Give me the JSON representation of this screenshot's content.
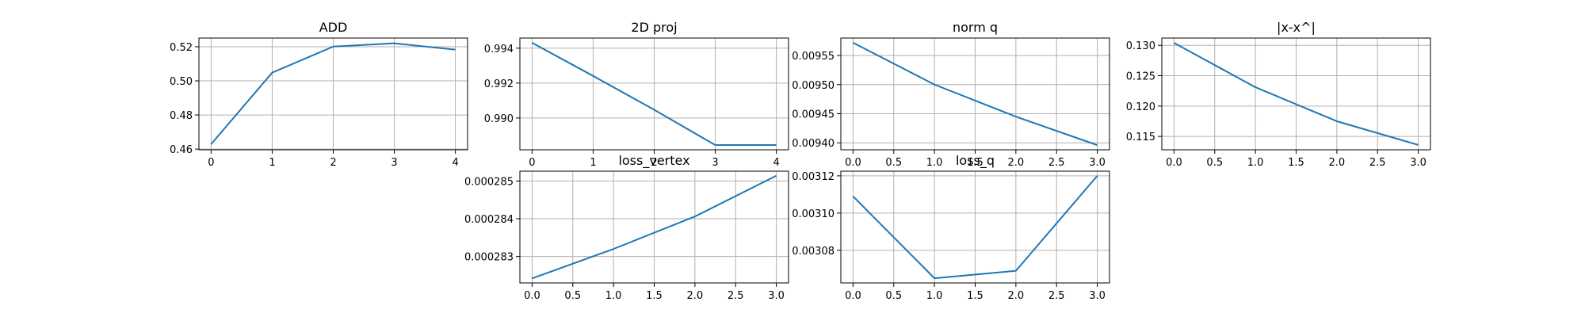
{
  "chart_data": [
    {
      "type": "line",
      "title": "ADD",
      "x": [
        0,
        1,
        2,
        3,
        4
      ],
      "series": [
        {
          "values": [
            0.4629,
            0.5048,
            0.5201,
            0.522,
            0.5183
          ]
        }
      ],
      "xlim": [
        -0.2,
        4.2
      ],
      "ylim": [
        0.4596,
        0.5251
      ],
      "xticks": [
        0,
        1,
        2,
        3,
        4
      ],
      "xtick_labels": [
        "0",
        "1",
        "2",
        "3",
        "4"
      ],
      "yticks": [
        0.46,
        0.48,
        0.5,
        0.52
      ],
      "ytick_labels": [
        "0.46",
        "0.48",
        "0.50",
        "0.52"
      ],
      "grid": true,
      "color": "#1f77b4"
    },
    {
      "type": "line",
      "title": "2D proj",
      "x": [
        0,
        1,
        2,
        3,
        4
      ],
      "series": [
        {
          "values": [
            0.99431,
            0.99241,
            0.99047,
            0.98845,
            0.98845
          ]
        }
      ],
      "xlim": [
        -0.2,
        4.2
      ],
      "ylim": [
        0.98818,
        0.99458
      ],
      "xticks": [
        0,
        1,
        2,
        3,
        4
      ],
      "xtick_labels": [
        "0",
        "1",
        "2",
        "3",
        "4"
      ],
      "yticks": [
        0.99,
        0.992,
        0.994
      ],
      "ytick_labels": [
        "0.990",
        "0.992",
        "0.994"
      ],
      "grid": true,
      "color": "#1f77b4"
    },
    {
      "type": "line",
      "title": "norm q",
      "x": [
        0,
        1,
        2,
        3
      ],
      "series": [
        {
          "values": [
            0.009572,
            0.0095,
            0.009445,
            0.009396
          ]
        }
      ],
      "xlim": [
        -0.15,
        3.15
      ],
      "ylim": [
        0.009388,
        0.00958
      ],
      "xticks": [
        0.0,
        0.5,
        1.0,
        1.5,
        2.0,
        2.5,
        3.0
      ],
      "xtick_labels": [
        "0.0",
        "0.5",
        "1.0",
        "1.5",
        "2.0",
        "2.5",
        "3.0"
      ],
      "yticks": [
        0.0094,
        0.00945,
        0.0095,
        0.00955
      ],
      "ytick_labels": [
        "0.00940",
        "0.00945",
        "0.00950",
        "0.00955"
      ],
      "grid": true,
      "color": "#1f77b4"
    },
    {
      "type": "line",
      "title": "|x-x^|",
      "x": [
        0,
        1,
        2,
        3
      ],
      "series": [
        {
          "values": [
            0.1304,
            0.1231,
            0.1175,
            0.1136
          ]
        }
      ],
      "xlim": [
        -0.15,
        3.15
      ],
      "ylim": [
        0.1128,
        0.1312
      ],
      "xticks": [
        0.0,
        0.5,
        1.0,
        1.5,
        2.0,
        2.5,
        3.0
      ],
      "xtick_labels": [
        "0.0",
        "0.5",
        "1.0",
        "1.5",
        "2.0",
        "2.5",
        "3.0"
      ],
      "yticks": [
        0.115,
        0.12,
        0.125,
        0.13
      ],
      "ytick_labels": [
        "0.115",
        "0.120",
        "0.125",
        "0.130"
      ],
      "grid": true,
      "color": "#1f77b4"
    },
    {
      "type": "line",
      "title": "loss_vertex",
      "x": [
        0,
        1,
        2,
        3
      ],
      "series": [
        {
          "values": [
            0.00028242,
            0.0002832,
            0.00028406,
            0.00028514
          ]
        }
      ],
      "xlim": [
        -0.15,
        3.15
      ],
      "ylim": [
        0.0002823,
        0.00028526
      ],
      "xticks": [
        0.0,
        0.5,
        1.0,
        1.5,
        2.0,
        2.5,
        3.0
      ],
      "xtick_labels": [
        "0.0",
        "0.5",
        "1.0",
        "1.5",
        "2.0",
        "2.5",
        "3.0"
      ],
      "yticks": [
        0.000283,
        0.000284,
        0.000285
      ],
      "ytick_labels": [
        "0.000283",
        "0.000284",
        "0.000285"
      ],
      "grid": true,
      "color": "#1f77b4"
    },
    {
      "type": "line",
      "title": "loss_q",
      "x": [
        0,
        1,
        2,
        3
      ],
      "series": [
        {
          "values": [
            0.003109,
            0.003065,
            0.003069,
            0.00312
          ]
        }
      ],
      "xlim": [
        -0.15,
        3.15
      ],
      "ylim": [
        0.0030625,
        0.0031225
      ],
      "xticks": [
        0.0,
        0.5,
        1.0,
        1.5,
        2.0,
        2.5,
        3.0
      ],
      "xtick_labels": [
        "0.0",
        "0.5",
        "1.0",
        "1.5",
        "2.0",
        "2.5",
        "3.0"
      ],
      "yticks": [
        0.00308,
        0.0031,
        0.00312
      ],
      "ytick_labels": [
        "0.00308",
        "0.00310",
        "0.00312"
      ],
      "grid": true,
      "color": "#1f77b4"
    }
  ]
}
